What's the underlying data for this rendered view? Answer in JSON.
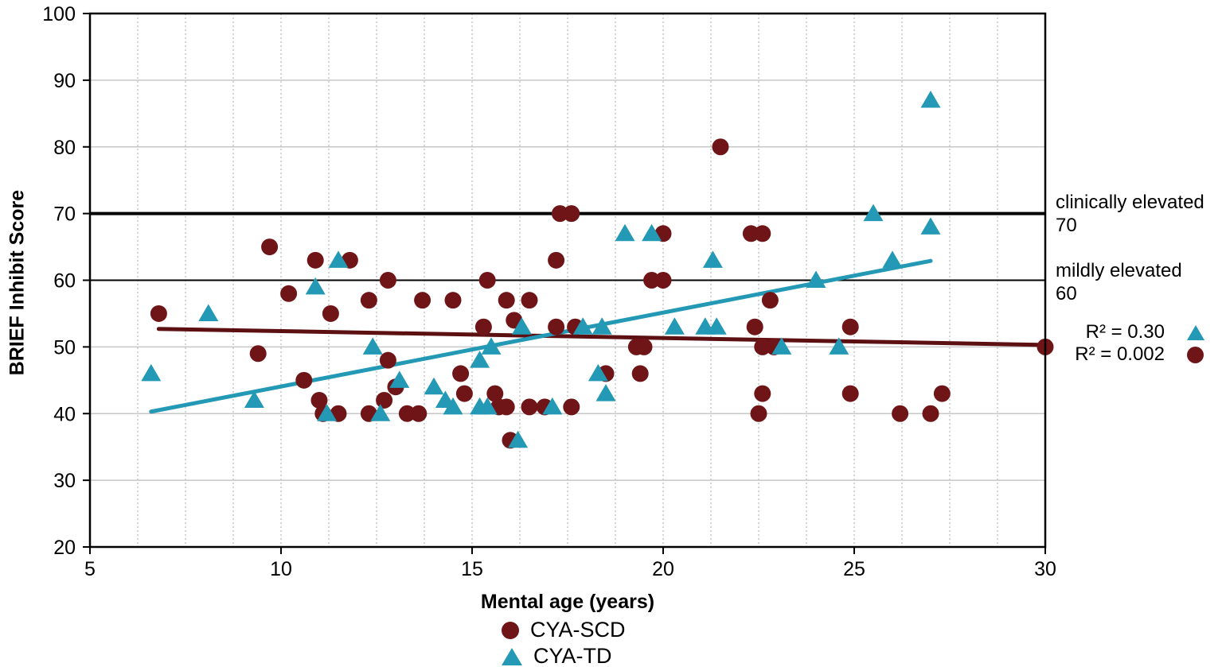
{
  "chart_data": {
    "type": "scatter",
    "title": "",
    "xlabel": "Mental age (years)",
    "ylabel": "BRIEF Inhibit Score",
    "xlim": [
      5,
      30
    ],
    "ylim": [
      20,
      100
    ],
    "x_ticks": [
      5,
      10,
      15,
      20,
      25,
      30
    ],
    "y_ticks": [
      20,
      30,
      40,
      50,
      60,
      70,
      80,
      90,
      100
    ],
    "grid": {
      "h_major_color": "#c7c7c7",
      "v_minor_step": 1.25,
      "v_minor_color": "#b8b8b8",
      "v_minor_style": "dotted"
    },
    "series": [
      {
        "name": "CYA-SCD",
        "marker": "circle",
        "color": "#701517",
        "r2_label": "R² = 0.002",
        "trend": {
          "x1": 6.8,
          "y1": 52.7,
          "x2": 30.0,
          "y2": 50.3,
          "color": "#5c1012"
        },
        "points": [
          [
            6.8,
            55
          ],
          [
            9.4,
            49
          ],
          [
            9.7,
            65
          ],
          [
            10.2,
            58
          ],
          [
            10.6,
            45
          ],
          [
            10.9,
            63
          ],
          [
            11.0,
            42
          ],
          [
            11.1,
            40
          ],
          [
            11.3,
            55
          ],
          [
            11.5,
            40
          ],
          [
            11.8,
            63
          ],
          [
            12.3,
            40
          ],
          [
            12.3,
            57
          ],
          [
            12.7,
            42
          ],
          [
            12.8,
            48
          ],
          [
            12.8,
            60
          ],
          [
            13.0,
            44
          ],
          [
            13.3,
            40
          ],
          [
            13.6,
            40
          ],
          [
            13.7,
            57
          ],
          [
            14.5,
            57
          ],
          [
            14.7,
            46
          ],
          [
            14.8,
            43
          ],
          [
            15.3,
            53
          ],
          [
            15.4,
            60
          ],
          [
            15.6,
            43
          ],
          [
            15.7,
            41
          ],
          [
            15.9,
            41
          ],
          [
            15.9,
            57
          ],
          [
            16.0,
            36
          ],
          [
            16.1,
            54
          ],
          [
            16.5,
            41
          ],
          [
            16.5,
            57
          ],
          [
            16.9,
            41
          ],
          [
            17.2,
            53
          ],
          [
            17.2,
            63
          ],
          [
            17.3,
            70
          ],
          [
            17.6,
            41
          ],
          [
            17.6,
            70
          ],
          [
            17.7,
            53
          ],
          [
            18.5,
            46
          ],
          [
            19.3,
            50
          ],
          [
            19.4,
            46
          ],
          [
            19.5,
            50
          ],
          [
            19.7,
            60
          ],
          [
            20.0,
            60
          ],
          [
            20.0,
            67
          ],
          [
            21.5,
            80
          ],
          [
            22.3,
            67
          ],
          [
            22.4,
            53
          ],
          [
            22.5,
            40
          ],
          [
            22.6,
            43
          ],
          [
            22.6,
            50
          ],
          [
            22.6,
            67
          ],
          [
            22.8,
            57
          ],
          [
            22.9,
            50
          ],
          [
            24.9,
            43
          ],
          [
            24.9,
            53
          ],
          [
            26.2,
            40
          ],
          [
            27.0,
            40
          ],
          [
            27.3,
            43
          ],
          [
            30.0,
            50
          ]
        ]
      },
      {
        "name": "CYA-TD",
        "marker": "triangle",
        "color": "#2399B5",
        "r2_label": "R² = 0.30",
        "trend": {
          "x1": 6.6,
          "y1": 40.3,
          "x2": 27.0,
          "y2": 62.9,
          "color": "#2399B5"
        },
        "points": [
          [
            6.6,
            46
          ],
          [
            8.1,
            55
          ],
          [
            9.3,
            42
          ],
          [
            10.9,
            59
          ],
          [
            11.2,
            40
          ],
          [
            11.5,
            63
          ],
          [
            12.4,
            50
          ],
          [
            12.6,
            40
          ],
          [
            13.1,
            45
          ],
          [
            14.0,
            44
          ],
          [
            14.3,
            42
          ],
          [
            14.5,
            41
          ],
          [
            15.2,
            41
          ],
          [
            15.2,
            48
          ],
          [
            15.4,
            41
          ],
          [
            15.5,
            50
          ],
          [
            16.2,
            36
          ],
          [
            16.3,
            53
          ],
          [
            17.1,
            41
          ],
          [
            17.9,
            53
          ],
          [
            18.3,
            46
          ],
          [
            18.4,
            53
          ],
          [
            18.5,
            43
          ],
          [
            19.0,
            67
          ],
          [
            19.7,
            67
          ],
          [
            20.3,
            53
          ],
          [
            21.1,
            53
          ],
          [
            21.3,
            63
          ],
          [
            21.4,
            53
          ],
          [
            23.1,
            50
          ],
          [
            24.0,
            60
          ],
          [
            24.6,
            50
          ],
          [
            25.5,
            70
          ],
          [
            26.0,
            63
          ],
          [
            27.0,
            68
          ],
          [
            27.0,
            87
          ]
        ]
      }
    ],
    "reference_lines": [
      {
        "y": 70,
        "label": "clinically elevated",
        "value_label": "70",
        "color": "#000000",
        "width": 4
      },
      {
        "y": 60,
        "label": "mildly elevated",
        "value_label": "60",
        "color": "#000000",
        "width": 2
      }
    ],
    "legend_position": "bottom"
  },
  "annotations": {
    "clinical": {
      "line1": "clinically elevated",
      "line2": "70"
    },
    "mild": {
      "line1": "mildly elevated",
      "line2": "60"
    },
    "r2_td": "R² = 0.30",
    "r2_scd": "R² = 0.002"
  },
  "legend": {
    "scd_label": "CYA-SCD",
    "td_label": "CYA-TD"
  },
  "axis": {
    "x_title": "Mental age (years)",
    "y_title": "BRIEF Inhibit Score"
  }
}
